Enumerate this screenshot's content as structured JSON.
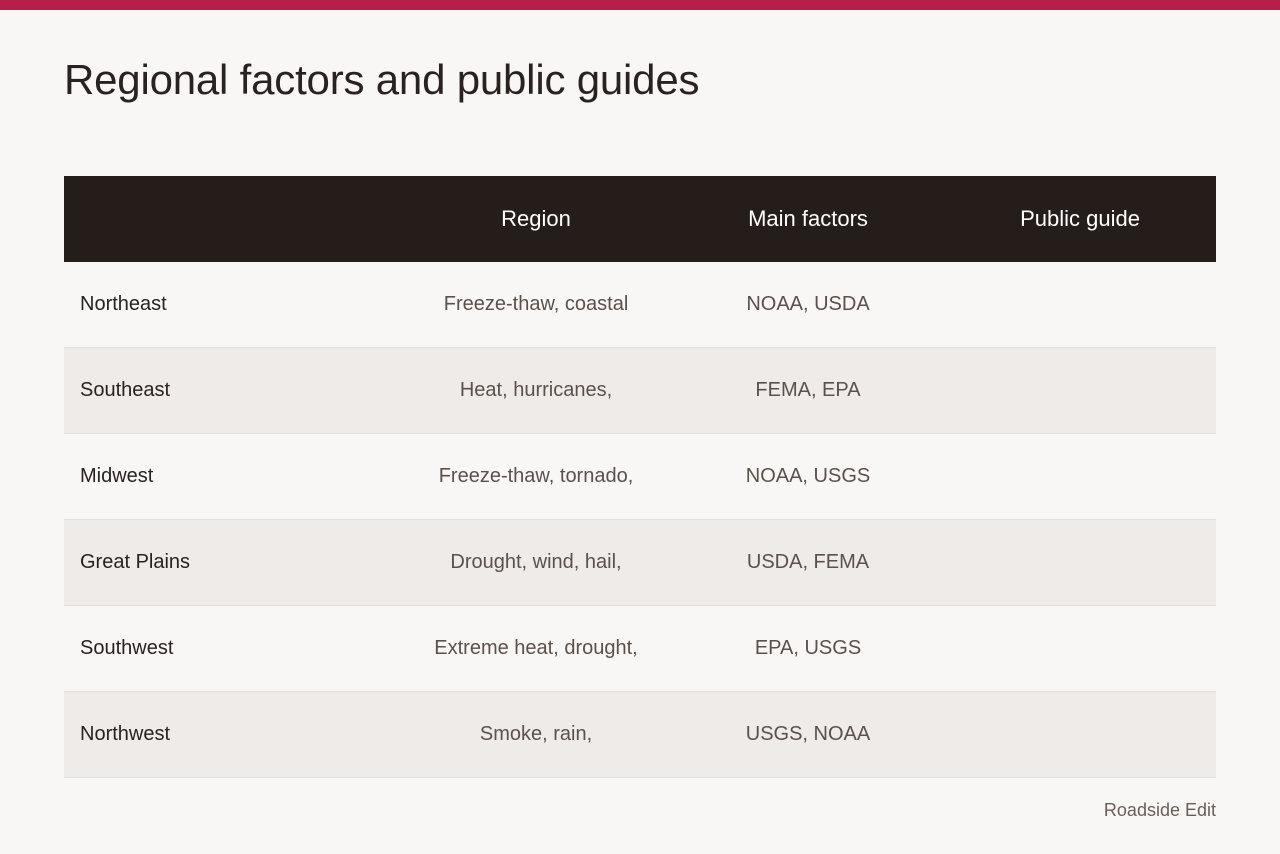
{
  "title": "Regional factors and public guides",
  "accent_color": "#b81f48",
  "header_color": "#251d1a",
  "table": {
    "headers": [
      "",
      "Region",
      "Main factors",
      "Public guide"
    ],
    "rows": [
      [
        "Northeast",
        "Freeze-thaw, coastal",
        "NOAA, USDA",
        ""
      ],
      [
        "Southeast",
        "Heat, hurricanes,",
        "FEMA, EPA",
        ""
      ],
      [
        "Midwest",
        "Freeze-thaw, tornado,",
        "NOAA, USGS",
        ""
      ],
      [
        "Great Plains",
        "Drought, wind, hail,",
        "USDA, FEMA",
        ""
      ],
      [
        "Southwest",
        "Extreme heat, drought,",
        "EPA, USGS",
        ""
      ],
      [
        "Northwest",
        "Smoke, rain,",
        "USGS, NOAA",
        ""
      ]
    ]
  },
  "footer": "Roadside Edit"
}
